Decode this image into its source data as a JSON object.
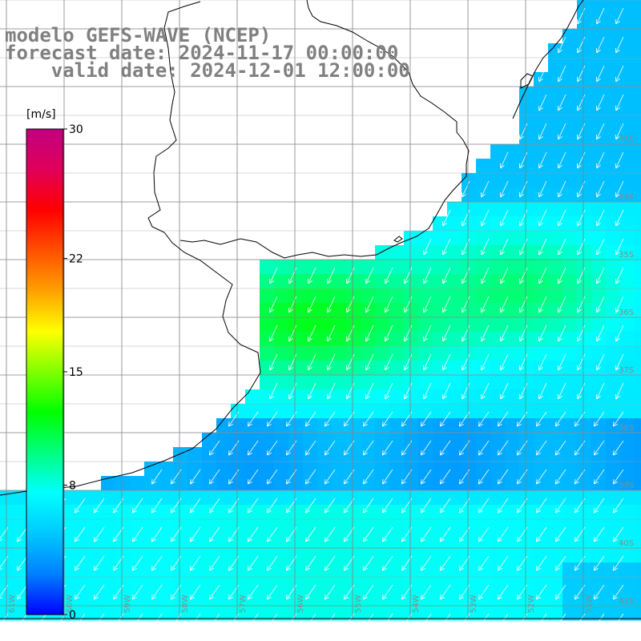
{
  "title": {
    "line1": "modelo GEFS-WAVE (NCEP)",
    "line2": "forecast date: 2024-11-17 00:00:00",
    "line3": "    valid date: 2024-12-01 12:00:00"
  },
  "colorbar": {
    "unit": "[m/s]",
    "ticks": [
      "30",
      "22",
      "15",
      "8",
      "0"
    ],
    "tick_values": [
      30,
      22,
      15,
      8,
      0
    ],
    "min": 0,
    "max": 30,
    "colors": [
      "#0000ff",
      "#0080ff",
      "#00c8ff",
      "#00ffff",
      "#00ff80",
      "#00ff00",
      "#80ff00",
      "#ffff00",
      "#ffa000",
      "#ff5000",
      "#ff0000",
      "#e0005a",
      "#c00080"
    ]
  },
  "map": {
    "lat_labels": [
      "33S",
      "34S",
      "35S",
      "36S",
      "37S",
      "38S",
      "39S",
      "40S",
      "41S"
    ],
    "lon_labels": [
      "61W",
      "60W",
      "59W",
      "58W",
      "57W",
      "56W",
      "55W",
      "54W",
      "53W",
      "52W",
      "51W"
    ],
    "land_color": "#ffffff",
    "grid_color": "#808080",
    "coast_color": "#000000",
    "arrow_color": "#ffffff",
    "field": "wind speed and direction",
    "wind_from": "northeast"
  }
}
